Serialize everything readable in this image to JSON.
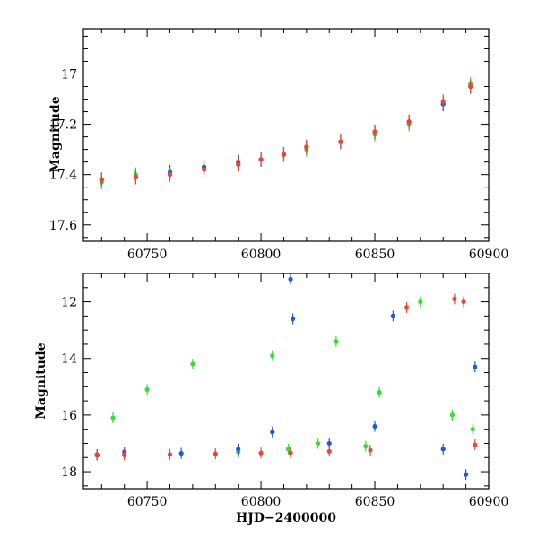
{
  "chart_data": [
    {
      "type": "scatter",
      "panel": "top",
      "title": "",
      "xlabel": "",
      "ylabel": "Magnitude",
      "xlim": [
        60722,
        60900
      ],
      "ylim": [
        16.82,
        17.665
      ],
      "y_inverted": true,
      "xticks": [
        60750,
        60800,
        60850,
        60900
      ],
      "yticks": [
        17,
        17.2,
        17.4,
        17.6
      ],
      "xtick_labels": [
        "60750",
        "60800",
        "60850",
        "60900"
      ],
      "ytick_labels": [
        "17",
        "17.2",
        "17.4",
        "17.6"
      ],
      "grid": false,
      "legend": "none",
      "series": [
        {
          "color": "#33dd33",
          "x": [
            60730,
            60745,
            60760,
            60775,
            60790,
            60800,
            60810,
            60820,
            60835,
            60850,
            60865,
            60880,
            60892
          ],
          "y": [
            17.43,
            17.4,
            17.39,
            17.37,
            17.36,
            17.34,
            17.32,
            17.3,
            17.27,
            17.24,
            17.2,
            17.12,
            17.04
          ]
        },
        {
          "color": "#1f5ad6",
          "x": [
            60730,
            60745,
            60760,
            60775,
            60790,
            60800,
            60810,
            60820,
            60835,
            60850,
            60865,
            60880,
            60892
          ],
          "y": [
            17.42,
            17.41,
            17.39,
            17.37,
            17.35,
            17.34,
            17.32,
            17.29,
            17.27,
            17.23,
            17.19,
            17.12,
            17.05
          ]
        },
        {
          "color": "#ee4433",
          "x": [
            60730,
            60745,
            60760,
            60775,
            60790,
            60800,
            60810,
            60820,
            60835,
            60850,
            60865,
            60880,
            60892
          ],
          "y": [
            17.42,
            17.41,
            17.4,
            17.38,
            17.36,
            17.34,
            17.32,
            17.29,
            17.27,
            17.23,
            17.19,
            17.11,
            17.05
          ]
        }
      ]
    },
    {
      "type": "scatter",
      "panel": "bottom",
      "title": "",
      "xlabel": "HJD−2400000",
      "ylabel": "Magnitude",
      "xlim": [
        60722,
        60900
      ],
      "ylim": [
        11.0,
        18.6
      ],
      "y_inverted": true,
      "xticks": [
        60750,
        60800,
        60850,
        60900
      ],
      "yticks": [
        12,
        14,
        16,
        18
      ],
      "xtick_labels": [
        "60750",
        "60800",
        "60850",
        "60900"
      ],
      "ytick_labels": [
        "12",
        "14",
        "16",
        "18"
      ],
      "grid": false,
      "legend": "none",
      "series": [
        {
          "color": "#33dd33",
          "x": [
            60728,
            60735,
            60750,
            60770,
            60790,
            60805,
            60812,
            60825,
            60833,
            60846,
            60852,
            60870,
            60884,
            60893
          ],
          "y": [
            17.4,
            16.1,
            15.1,
            14.2,
            17.3,
            13.9,
            17.2,
            17.0,
            13.4,
            17.1,
            15.2,
            12.0,
            16.0,
            16.5
          ]
        },
        {
          "color": "#1f5ad6",
          "x": [
            60728,
            60740,
            60765,
            60790,
            60805,
            60813,
            60814,
            60830,
            60850,
            60858,
            60880,
            60890,
            60894
          ],
          "y": [
            17.4,
            17.3,
            17.35,
            17.2,
            16.6,
            11.2,
            12.6,
            17.0,
            16.4,
            12.5,
            17.2,
            18.1,
            14.3
          ]
        },
        {
          "color": "#ee4433",
          "x": [
            60728,
            60740,
            60760,
            60780,
            60800,
            60813,
            60830,
            60848,
            60864,
            60885,
            60889,
            60894
          ],
          "y": [
            17.42,
            17.41,
            17.39,
            17.37,
            17.34,
            17.33,
            17.28,
            17.24,
            12.2,
            11.9,
            12.0,
            17.05
          ]
        }
      ]
    }
  ]
}
